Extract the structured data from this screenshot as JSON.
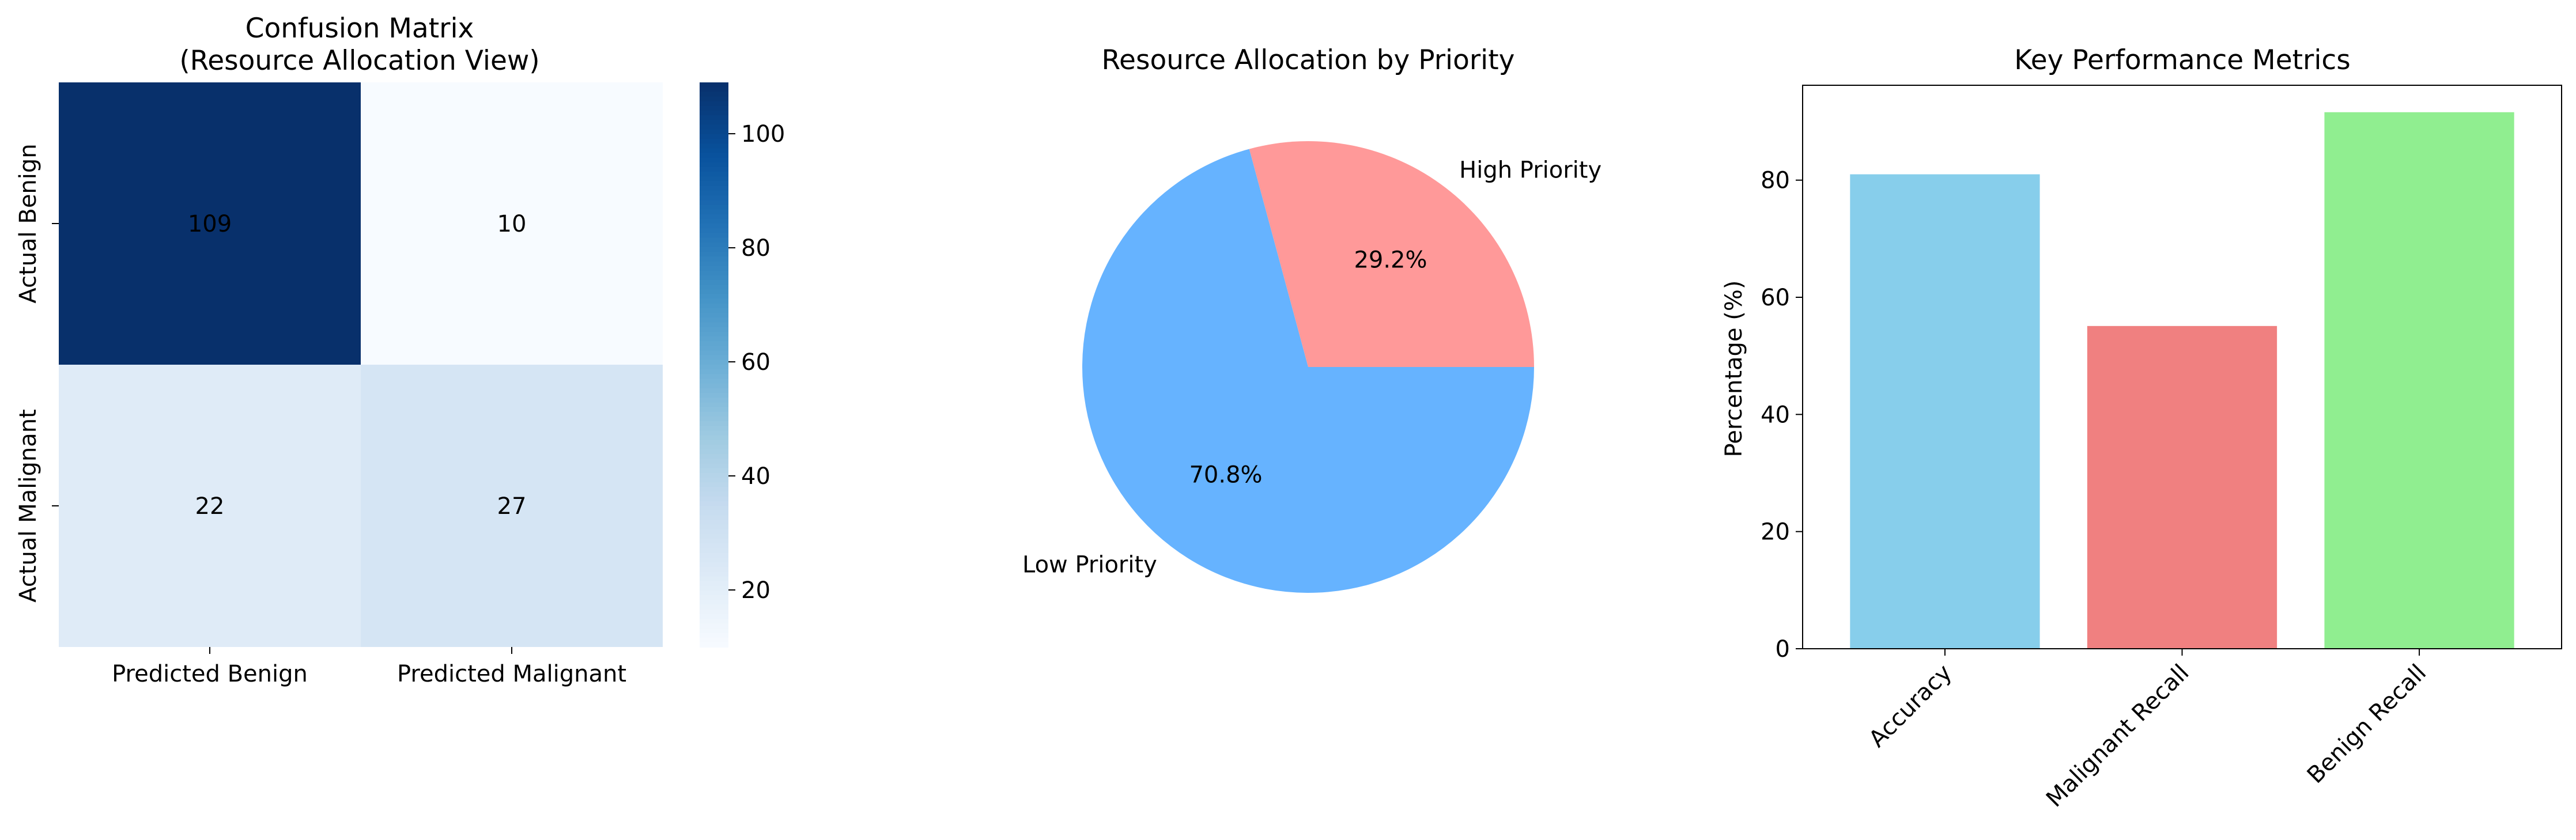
{
  "chart_data": [
    {
      "type": "heatmap",
      "title": "Confusion Matrix",
      "subtitle": "(Resource Allocation View)",
      "rows": [
        "Actual Benign",
        "Actual Malignant"
      ],
      "columns": [
        "Predicted Benign",
        "Predicted Malignant"
      ],
      "values": [
        [
          109,
          10
        ],
        [
          22,
          27
        ]
      ],
      "colormap": "Blues",
      "colorbar": {
        "ticks": [
          20,
          40,
          60,
          80,
          100
        ],
        "range": [
          10,
          109
        ]
      }
    },
    {
      "type": "pie",
      "title": "Resource Allocation by Priority",
      "slices": [
        {
          "label": "High Priority",
          "value": 29.2,
          "pct_label": "29.2%",
          "color": "#ff9999"
        },
        {
          "label": "Low Priority",
          "value": 70.8,
          "pct_label": "70.8%",
          "color": "#66b3ff"
        }
      ]
    },
    {
      "type": "bar",
      "title": "Key Performance Metrics",
      "ylabel": "Percentage (%)",
      "categories": [
        "Accuracy",
        "Malignant Recall",
        "Benign Recall"
      ],
      "values": [
        81.0,
        55.1,
        91.6
      ],
      "colors": [
        "#87ceeb",
        "#f08080",
        "#90ee90"
      ],
      "ylim": [
        0,
        96.2
      ],
      "yticks": [
        0,
        20,
        40,
        60,
        80
      ]
    }
  ]
}
